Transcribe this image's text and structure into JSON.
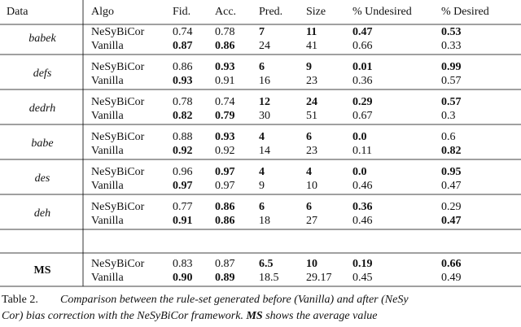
{
  "table": {
    "headers": [
      "Data",
      "Algo",
      "Fid.",
      "Acc.",
      "Pred.",
      "Size",
      "% Undesired",
      "% Desired"
    ],
    "groups": [
      {
        "data": "babek",
        "style": "italic",
        "rows": [
          {
            "algo": "NeSyBiCor",
            "cells": [
              "0.74",
              "0.78",
              "7",
              "11",
              "0.47",
              "0.53"
            ],
            "bold": [
              false,
              false,
              true,
              true,
              true,
              true
            ]
          },
          {
            "algo": "Vanilla",
            "cells": [
              "0.87",
              "0.86",
              "24",
              "41",
              "0.66",
              "0.33"
            ],
            "bold": [
              true,
              true,
              false,
              false,
              false,
              false
            ]
          }
        ]
      },
      {
        "data": "defs",
        "style": "italic",
        "rows": [
          {
            "algo": "NeSyBiCor",
            "cells": [
              "0.86",
              "0.93",
              "6",
              "9",
              "0.01",
              "0.99"
            ],
            "bold": [
              false,
              true,
              true,
              true,
              true,
              true
            ]
          },
          {
            "algo": "Vanilla",
            "cells": [
              "0.93",
              "0.91",
              "16",
              "23",
              "0.36",
              "0.57"
            ],
            "bold": [
              true,
              false,
              false,
              false,
              false,
              false
            ]
          }
        ]
      },
      {
        "data": "dedrh",
        "style": "italic",
        "rows": [
          {
            "algo": "NeSyBiCor",
            "cells": [
              "0.78",
              "0.74",
              "12",
              "24",
              "0.29",
              "0.57"
            ],
            "bold": [
              false,
              false,
              true,
              true,
              true,
              true
            ]
          },
          {
            "algo": "Vanilla",
            "cells": [
              "0.82",
              "0.79",
              "30",
              "51",
              "0.67",
              "0.3"
            ],
            "bold": [
              true,
              true,
              false,
              false,
              false,
              false
            ]
          }
        ]
      },
      {
        "data": "babe",
        "style": "italic",
        "rows": [
          {
            "algo": "NeSyBiCor",
            "cells": [
              "0.88",
              "0.93",
              "4",
              "6",
              "0.0",
              "0.6"
            ],
            "bold": [
              false,
              true,
              true,
              true,
              true,
              false
            ]
          },
          {
            "algo": "Vanilla",
            "cells": [
              "0.92",
              "0.92",
              "14",
              "23",
              "0.11",
              "0.82"
            ],
            "bold": [
              true,
              false,
              false,
              false,
              false,
              true
            ]
          }
        ]
      },
      {
        "data": "des",
        "style": "italic",
        "rows": [
          {
            "algo": "NeSyBiCor",
            "cells": [
              "0.96",
              "0.97",
              "4",
              "4",
              "0.0",
              "0.95"
            ],
            "bold": [
              false,
              true,
              true,
              true,
              true,
              true
            ]
          },
          {
            "algo": "Vanilla",
            "cells": [
              "0.97",
              "0.97",
              "9",
              "10",
              "0.46",
              "0.47"
            ],
            "bold": [
              true,
              false,
              false,
              false,
              false,
              false
            ]
          }
        ]
      },
      {
        "data": "deh",
        "style": "italic",
        "rows": [
          {
            "algo": "NeSyBiCor",
            "cells": [
              "0.77",
              "0.86",
              "6",
              "6",
              "0.36",
              "0.29"
            ],
            "bold": [
              false,
              true,
              true,
              true,
              true,
              false
            ]
          },
          {
            "algo": "Vanilla",
            "cells": [
              "0.91",
              "0.86",
              "18",
              "27",
              "0.46",
              "0.47"
            ],
            "bold": [
              true,
              true,
              false,
              false,
              false,
              true
            ]
          }
        ]
      },
      {
        "data": "MS",
        "style": "bold",
        "rows": [
          {
            "algo": "NeSyBiCor",
            "cells": [
              "0.83",
              "0.87",
              "6.5",
              "10",
              "0.19",
              "0.66"
            ],
            "bold": [
              false,
              false,
              true,
              true,
              true,
              true
            ]
          },
          {
            "algo": "Vanilla",
            "cells": [
              "0.90",
              "0.89",
              "18.5",
              "29.17",
              "0.45",
              "0.49"
            ],
            "bold": [
              true,
              true,
              false,
              false,
              false,
              false
            ]
          }
        ]
      }
    ]
  },
  "caption": {
    "label": "Table 2.",
    "line1": "Comparison between the rule-set generated before (Vanilla) and after (NeSy",
    "line2_start": "Cor) bias correction with the NeSyBiCor framework.",
    "line2_bold": "MS",
    "line2_end": "shows the average value"
  }
}
